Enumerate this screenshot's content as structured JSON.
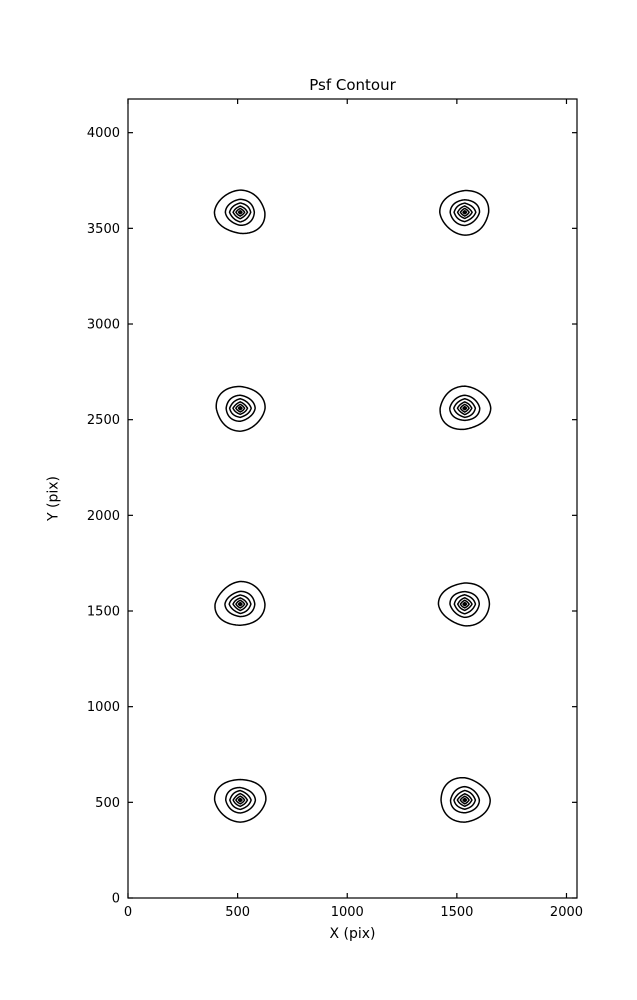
{
  "figure": {
    "background": "#ffffff",
    "foreground": "#000000"
  },
  "chart_data": {
    "type": "contour",
    "title": "Psf Contour",
    "xlabel": "X (pix)",
    "ylabel": "Y (pix)",
    "xlim": [
      0,
      2048
    ],
    "ylim": [
      0,
      4176
    ],
    "xticks": [
      0,
      500,
      1000,
      1500,
      2000
    ],
    "yticks": [
      0,
      500,
      1000,
      1500,
      2000,
      2500,
      3000,
      3500,
      4000
    ],
    "grid": false,
    "legend": "none",
    "tick_direction": "in",
    "line_color": "#000000",
    "background": "#ffffff",
    "sources": [
      {
        "x": 512,
        "y": 512
      },
      {
        "x": 1536,
        "y": 512
      },
      {
        "x": 512,
        "y": 1536
      },
      {
        "x": 1536,
        "y": 1536
      },
      {
        "x": 512,
        "y": 2560
      },
      {
        "x": 1536,
        "y": 2560
      },
      {
        "x": 512,
        "y": 3584
      },
      {
        "x": 1536,
        "y": 3584
      }
    ],
    "contour_levels": [
      {
        "radius_pix": 114,
        "diamondness": 0.05,
        "wobble": 0.035,
        "filled": false
      },
      {
        "radius_pix": 67,
        "diamondness": 0.1,
        "wobble": 0.028,
        "filled": false
      },
      {
        "radius_pix": 49,
        "diamondness": 0.32,
        "wobble": 0.02,
        "filled": false
      },
      {
        "radius_pix": 33,
        "diamondness": 0.55,
        "wobble": 0.015,
        "filled": false
      },
      {
        "radius_pix": 20,
        "diamondness": 0.65,
        "wobble": 0.01,
        "filled": false
      },
      {
        "radius_pix": 8,
        "diamondness": 0.6,
        "wobble": 0.0,
        "filled": true
      }
    ]
  }
}
